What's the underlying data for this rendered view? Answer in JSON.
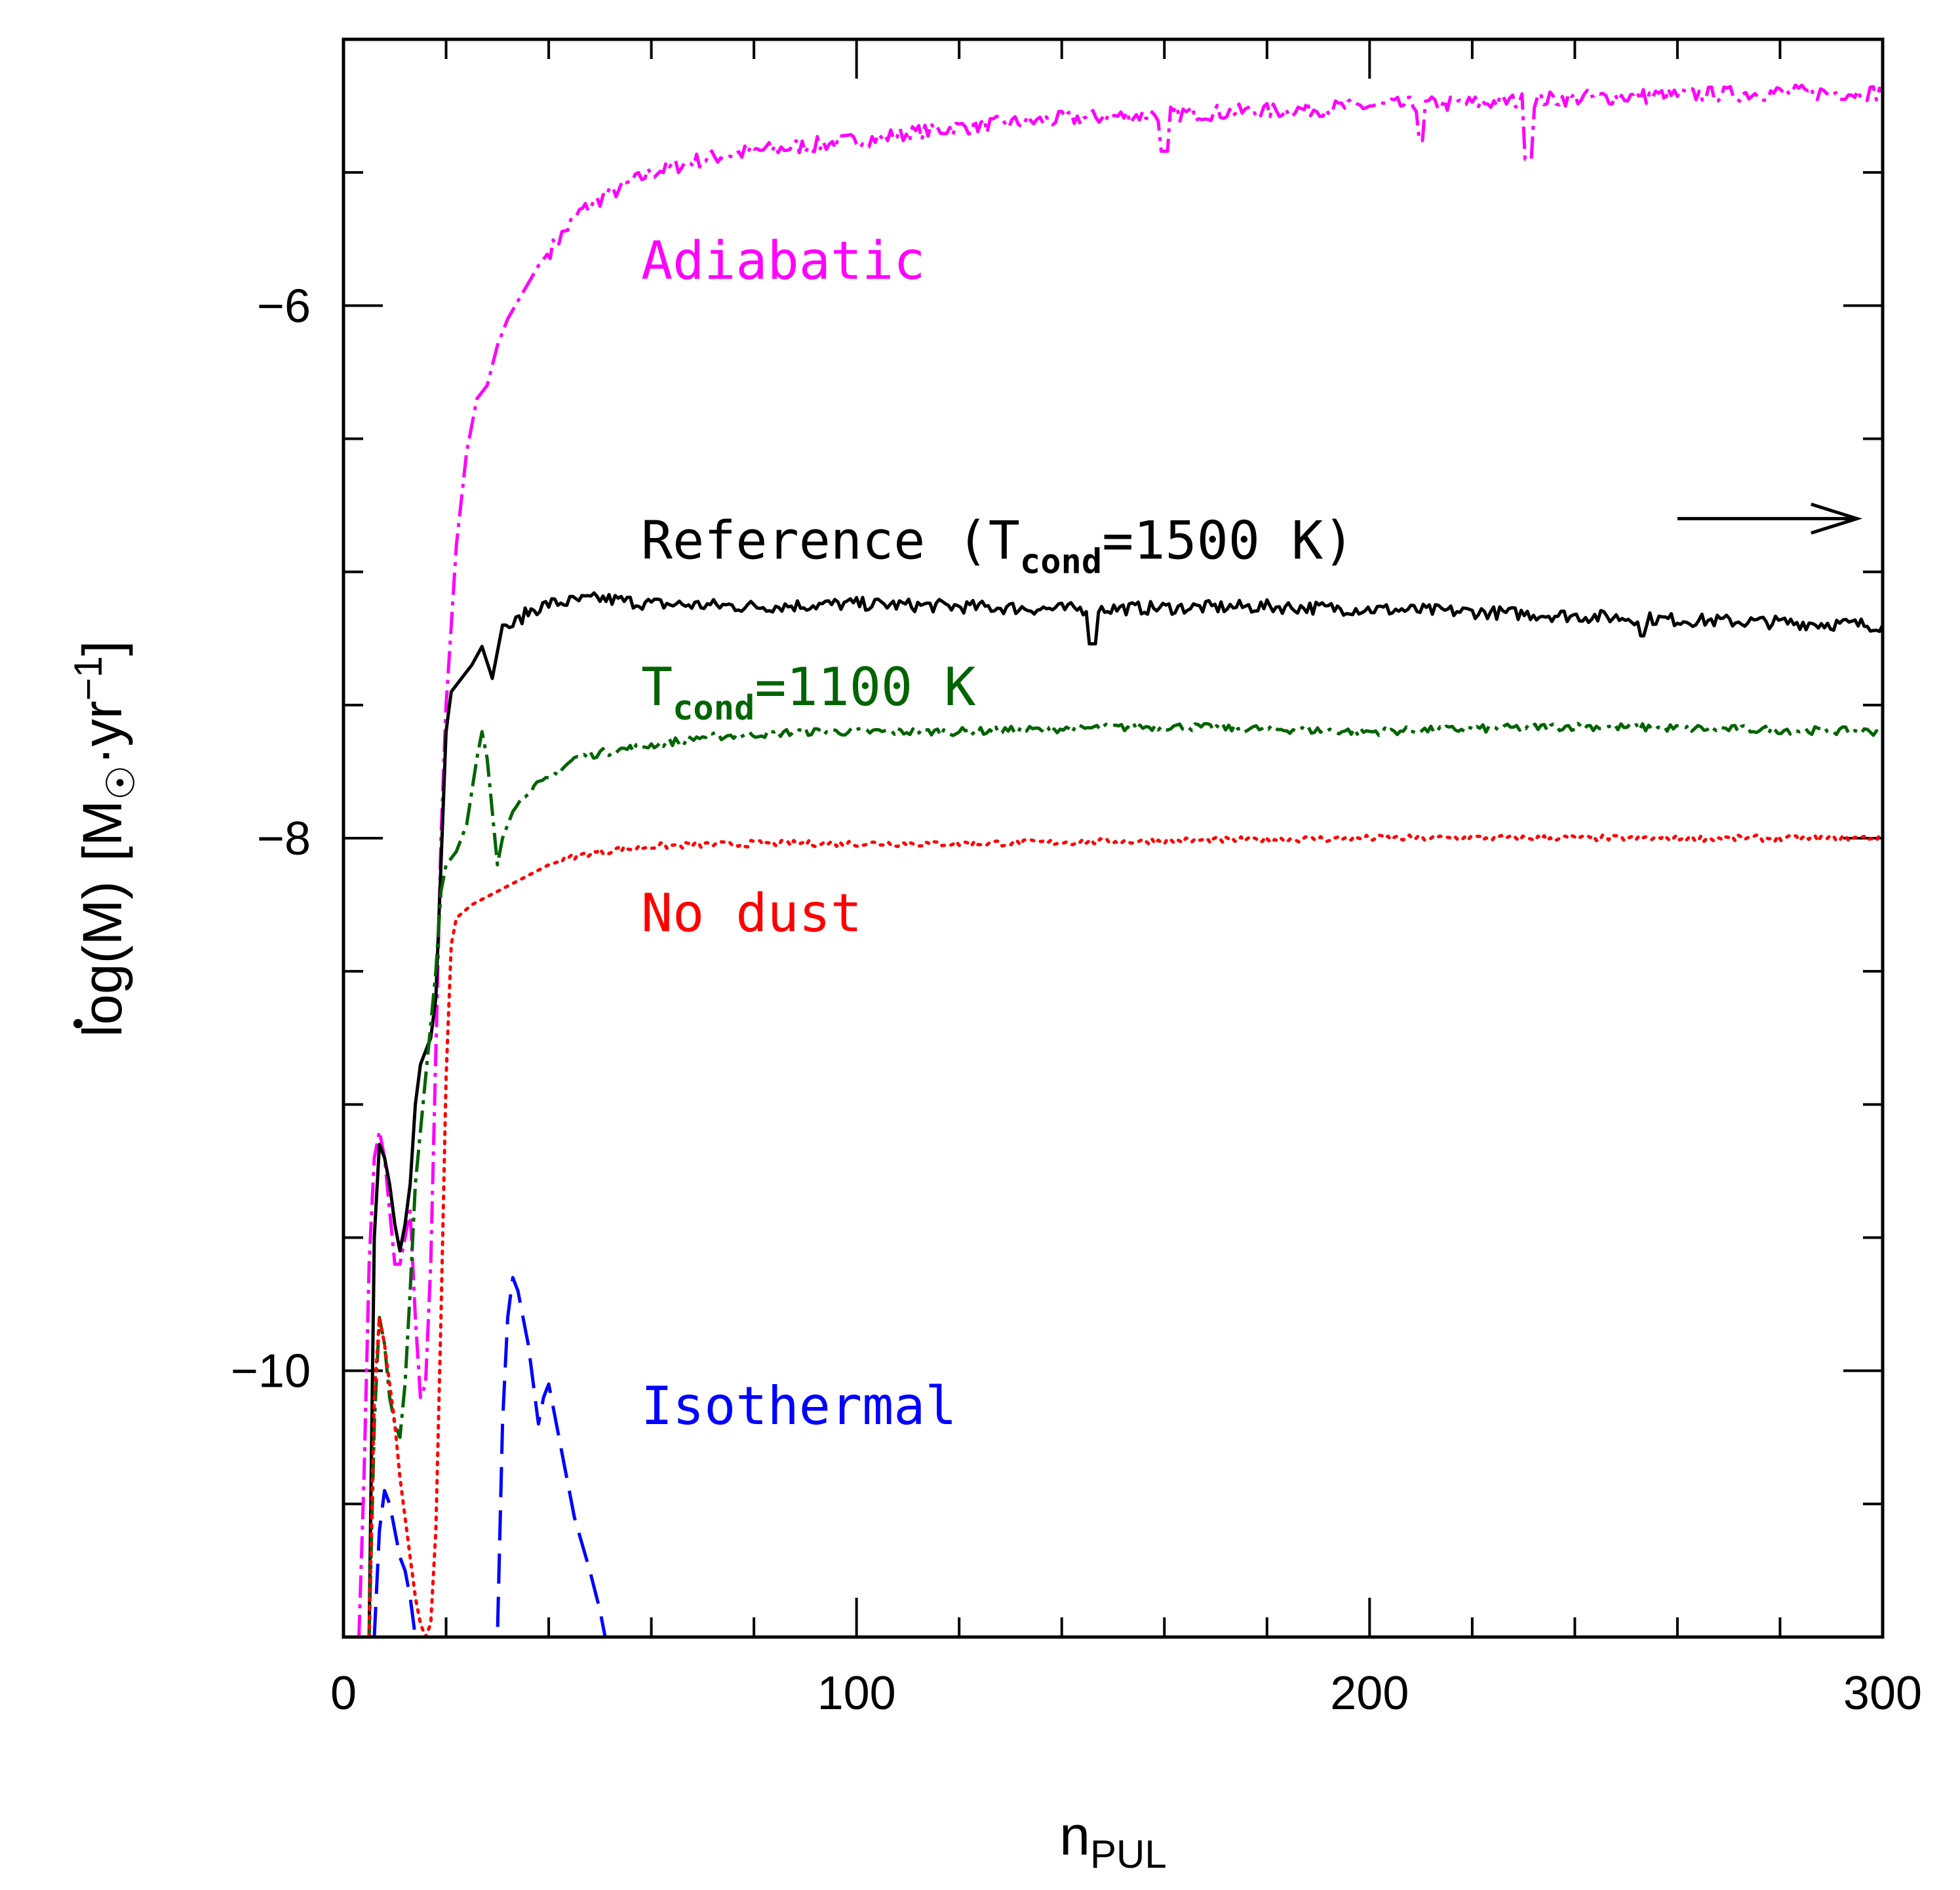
{
  "chart_data": {
    "type": "line",
    "title": "",
    "xlabel": "n",
    "xlabel_sub": "PUL",
    "ylabel_parts": {
      "log": "log(",
      "mdot": "M",
      "close": ")",
      "units_open": "[M",
      "units_mid": "·yr",
      "units_exp": "−1",
      "units_close": "]"
    },
    "xlim": [
      0,
      300
    ],
    "ylim": [
      -11,
      -5
    ],
    "xticks": [
      0,
      100,
      200,
      300
    ],
    "xtick_labels": [
      "0",
      "100",
      "200",
      "300"
    ],
    "yticks": [
      -6,
      -8,
      -10
    ],
    "ytick_labels": [
      "−6",
      "−8",
      "−10"
    ],
    "x_minor_step": 20,
    "y_minor_step": 0.5,
    "arrow_annotation": {
      "x_start": 260,
      "x_end": 295,
      "y": -6.8
    },
    "series": [
      {
        "name": "Adiabatic",
        "label": "Adiabatic",
        "color": "#ff00ff",
        "style": "dashdot",
        "label_pos": {
          "x": 58,
          "y": -5.9
        },
        "points": [
          [
            3,
            -11
          ],
          [
            4,
            -10.4
          ],
          [
            5,
            -9.6
          ],
          [
            6,
            -9.2
          ],
          [
            7,
            -9.1
          ],
          [
            8,
            -9.2
          ],
          [
            9,
            -9.4
          ],
          [
            10,
            -9.6
          ],
          [
            11,
            -9.6
          ],
          [
            12,
            -9.5
          ],
          [
            13,
            -9.4
          ],
          [
            14,
            -9.8
          ],
          [
            15,
            -10.1
          ],
          [
            16,
            -10.05
          ],
          [
            17,
            -9.6
          ],
          [
            18,
            -8.8
          ],
          [
            19,
            -8.0
          ],
          [
            20,
            -7.5
          ],
          [
            22,
            -6.9
          ],
          [
            24,
            -6.55
          ],
          [
            26,
            -6.35
          ],
          [
            28,
            -6.3
          ],
          [
            30,
            -6.15
          ],
          [
            32,
            -6.05
          ],
          [
            35,
            -5.95
          ],
          [
            38,
            -5.85
          ],
          [
            42,
            -5.75
          ],
          [
            46,
            -5.65
          ],
          [
            50,
            -5.6
          ],
          [
            55,
            -5.55
          ],
          [
            60,
            -5.5
          ],
          [
            70,
            -5.45
          ],
          [
            80,
            -5.42
          ],
          [
            90,
            -5.4
          ],
          [
            100,
            -5.38
          ],
          [
            120,
            -5.33
          ],
          [
            140,
            -5.3
          ],
          [
            160,
            -5.28
          ],
          [
            180,
            -5.27
          ],
          [
            200,
            -5.25
          ],
          [
            220,
            -5.24
          ],
          [
            240,
            -5.22
          ],
          [
            260,
            -5.21
          ],
          [
            280,
            -5.2
          ],
          [
            300,
            -5.2
          ]
        ],
        "noise": 0.03,
        "noise_start": 40,
        "dips": [
          [
            160,
            -5.42
          ],
          [
            210,
            -5.38
          ],
          [
            231,
            -5.45
          ]
        ]
      },
      {
        "name": "Reference (Tcond=1500 K)",
        "label": "Reference (T",
        "label_sub": "cond",
        "label_tail": "=1500 K)",
        "color": "#000000",
        "style": "solid",
        "label_pos": {
          "x": 58,
          "y": -6.95
        },
        "points": [
          [
            5,
            -11
          ],
          [
            6,
            -9.5
          ],
          [
            7,
            -9.15
          ],
          [
            8,
            -9.2
          ],
          [
            9,
            -9.3
          ],
          [
            10,
            -9.45
          ],
          [
            11,
            -9.55
          ],
          [
            12,
            -9.45
          ],
          [
            13,
            -9.3
          ],
          [
            14,
            -9.0
          ],
          [
            15,
            -8.85
          ],
          [
            16,
            -8.8
          ],
          [
            17,
            -8.75
          ],
          [
            18,
            -8.6
          ],
          [
            19,
            -8.1
          ],
          [
            20,
            -7.6
          ],
          [
            21,
            -7.45
          ],
          [
            23,
            -7.4
          ],
          [
            25,
            -7.35
          ],
          [
            27,
            -7.28
          ],
          [
            29,
            -7.4
          ],
          [
            31,
            -7.2
          ],
          [
            33,
            -7.2
          ],
          [
            36,
            -7.15
          ],
          [
            40,
            -7.12
          ],
          [
            50,
            -7.1
          ],
          [
            60,
            -7.12
          ],
          [
            80,
            -7.13
          ],
          [
            100,
            -7.12
          ],
          [
            140,
            -7.14
          ],
          [
            180,
            -7.13
          ],
          [
            220,
            -7.15
          ],
          [
            260,
            -7.18
          ],
          [
            300,
            -7.2
          ]
        ],
        "noise": 0.025,
        "noise_start": 32,
        "dips": [
          [
            146,
            -7.27
          ],
          [
            253,
            -7.24
          ]
        ]
      },
      {
        "name": "Tcond=1100 K",
        "label": "T",
        "label_sub": "cond",
        "label_tail": "=1100 K",
        "color": "#006400",
        "style": "dashdot",
        "label_pos": {
          "x": 58,
          "y": -7.5
        },
        "points": [
          [
            5,
            -11
          ],
          [
            6,
            -10.2
          ],
          [
            7,
            -9.8
          ],
          [
            8,
            -9.9
          ],
          [
            9,
            -10.1
          ],
          [
            10,
            -10.2
          ],
          [
            11,
            -10.25
          ],
          [
            12,
            -10.05
          ],
          [
            13,
            -9.7
          ],
          [
            14,
            -9.3
          ],
          [
            15,
            -9.1
          ],
          [
            16,
            -8.9
          ],
          [
            17,
            -8.7
          ],
          [
            18,
            -8.5
          ],
          [
            19,
            -8.2
          ],
          [
            20,
            -8.1
          ],
          [
            22,
            -8.05
          ],
          [
            24,
            -7.95
          ],
          [
            26,
            -7.7
          ],
          [
            27,
            -7.6
          ],
          [
            28,
            -7.7
          ],
          [
            29,
            -7.9
          ],
          [
            30,
            -8.1
          ],
          [
            31,
            -8.0
          ],
          [
            33,
            -7.9
          ],
          [
            36,
            -7.82
          ],
          [
            40,
            -7.78
          ],
          [
            45,
            -7.7
          ],
          [
            50,
            -7.68
          ],
          [
            60,
            -7.65
          ],
          [
            70,
            -7.62
          ],
          [
            90,
            -7.6
          ],
          [
            120,
            -7.6
          ],
          [
            160,
            -7.58
          ],
          [
            200,
            -7.6
          ],
          [
            240,
            -7.58
          ],
          [
            300,
            -7.6
          ]
        ],
        "noise": 0.015,
        "noise_start": 34,
        "dips": []
      },
      {
        "name": "No dust",
        "label": "No dust",
        "color": "#ff0000",
        "style": "dotted",
        "label_pos": {
          "x": 58,
          "y": -8.35
        },
        "points": [
          [
            5,
            -11
          ],
          [
            6,
            -10.1
          ],
          [
            7,
            -9.8
          ],
          [
            8,
            -9.9
          ],
          [
            9,
            -10.05
          ],
          [
            10,
            -10.2
          ],
          [
            11,
            -10.4
          ],
          [
            12,
            -10.55
          ],
          [
            13,
            -10.7
          ],
          [
            14,
            -10.85
          ],
          [
            15,
            -10.95
          ],
          [
            16,
            -11
          ],
          [
            17,
            -10.95
          ],
          [
            18,
            -10.6
          ],
          [
            19,
            -9.8
          ],
          [
            20,
            -8.9
          ],
          [
            21,
            -8.4
          ],
          [
            22,
            -8.3
          ],
          [
            25,
            -8.25
          ],
          [
            30,
            -8.2
          ],
          [
            35,
            -8.15
          ],
          [
            40,
            -8.1
          ],
          [
            45,
            -8.07
          ],
          [
            50,
            -8.05
          ],
          [
            60,
            -8.03
          ],
          [
            80,
            -8.02
          ],
          [
            120,
            -8.02
          ],
          [
            160,
            -8.01
          ],
          [
            200,
            -8.0
          ],
          [
            240,
            -8.0
          ],
          [
            300,
            -8.0
          ]
        ],
        "noise": 0.012,
        "noise_start": 42,
        "dips": []
      },
      {
        "name": "Isothermal",
        "label": "Isothermal",
        "color": "#0000ff",
        "style": "longdash",
        "label_pos": {
          "x": 58,
          "y": -10.2
        },
        "points": [
          [
            6,
            -11
          ],
          [
            7,
            -10.6
          ],
          [
            8,
            -10.45
          ],
          [
            9,
            -10.5
          ],
          [
            10,
            -10.6
          ],
          [
            11,
            -10.7
          ],
          [
            12,
            -10.75
          ],
          [
            13,
            -10.85
          ],
          [
            14,
            -11
          ],
          [
            30,
            -11
          ],
          [
            31,
            -10.2
          ],
          [
            32,
            -9.8
          ],
          [
            33,
            -9.65
          ],
          [
            34,
            -9.7
          ],
          [
            35,
            -9.8
          ],
          [
            36,
            -9.9
          ],
          [
            37,
            -10.05
          ],
          [
            38,
            -10.2
          ],
          [
            39,
            -10.1
          ],
          [
            40,
            -10.05
          ],
          [
            41,
            -10.15
          ],
          [
            43,
            -10.35
          ],
          [
            45,
            -10.55
          ],
          [
            48,
            -10.75
          ],
          [
            50,
            -10.9
          ],
          [
            51,
            -11
          ]
        ],
        "noise": 0,
        "noise_start": 999,
        "dips": []
      }
    ]
  }
}
